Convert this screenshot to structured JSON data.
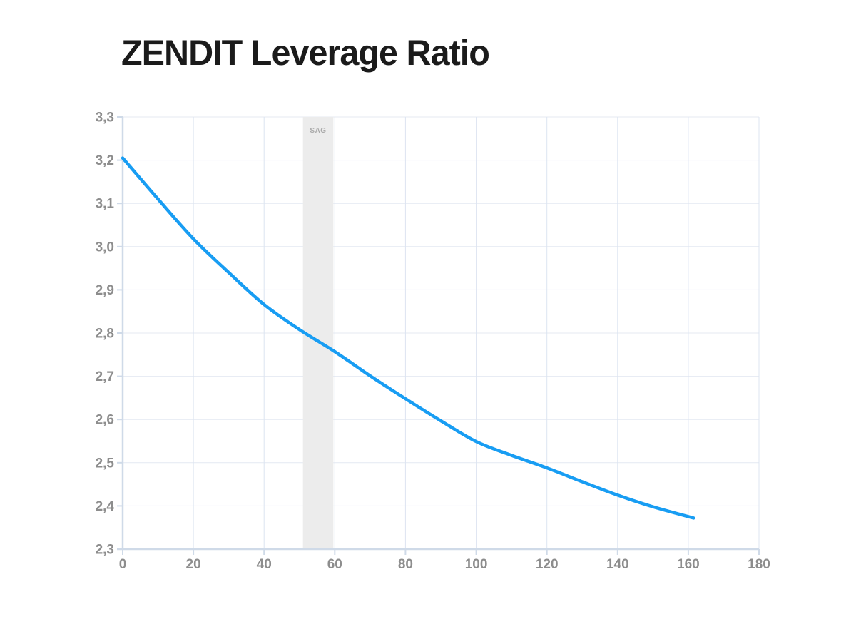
{
  "chart_data": {
    "type": "line",
    "title": "ZENDIT Leverage Ratio",
    "xlabel": "",
    "ylabel": "",
    "xlim": [
      0,
      180
    ],
    "ylim": [
      2.3,
      3.3
    ],
    "grid": true,
    "legend": "none",
    "x_tick_values": [
      0,
      20,
      40,
      60,
      80,
      100,
      120,
      140,
      160,
      180
    ],
    "x_tick_labels": [
      "0",
      "20",
      "40",
      "60",
      "80",
      "100",
      "120",
      "140",
      "160",
      "180"
    ],
    "y_tick_values": [
      2.3,
      2.4,
      2.5,
      2.6,
      2.7,
      2.8,
      2.9,
      3.0,
      3.1,
      3.2,
      3.3
    ],
    "y_tick_labels": [
      "2,3",
      "2,4",
      "2,5",
      "2,6",
      "2,7",
      "2,8",
      "2,9",
      "3,0",
      "3,1",
      "3,2",
      "3,3"
    ],
    "series": [
      {
        "name": "Leverage ratio",
        "points": [
          [
            0,
            3.205
          ],
          [
            10,
            3.11
          ],
          [
            20,
            3.018
          ],
          [
            30,
            2.94
          ],
          [
            40,
            2.866
          ],
          [
            50,
            2.808
          ],
          [
            60,
            2.757
          ],
          [
            70,
            2.701
          ],
          [
            80,
            2.648
          ],
          [
            90,
            2.597
          ],
          [
            100,
            2.549
          ],
          [
            110,
            2.517
          ],
          [
            120,
            2.488
          ],
          [
            130,
            2.456
          ],
          [
            140,
            2.425
          ],
          [
            150,
            2.398
          ],
          [
            161.5,
            2.372
          ]
        ]
      }
    ],
    "annotations": [
      {
        "type": "vertical-band",
        "label": "SAG",
        "x_from": 51,
        "x_to": 59.6
      }
    ],
    "colors": {
      "curve": "#189df3",
      "h_grid": "#e4e9f2",
      "v_grid": "#dce4f1",
      "axis": "#cfdae8",
      "tick": "#cfdae8",
      "tick_label": "#8d8d8d",
      "band_fill": "#ececec",
      "band_label": "#a9a9a9",
      "title": "#1b1b1b",
      "background": "#ffffff"
    }
  }
}
